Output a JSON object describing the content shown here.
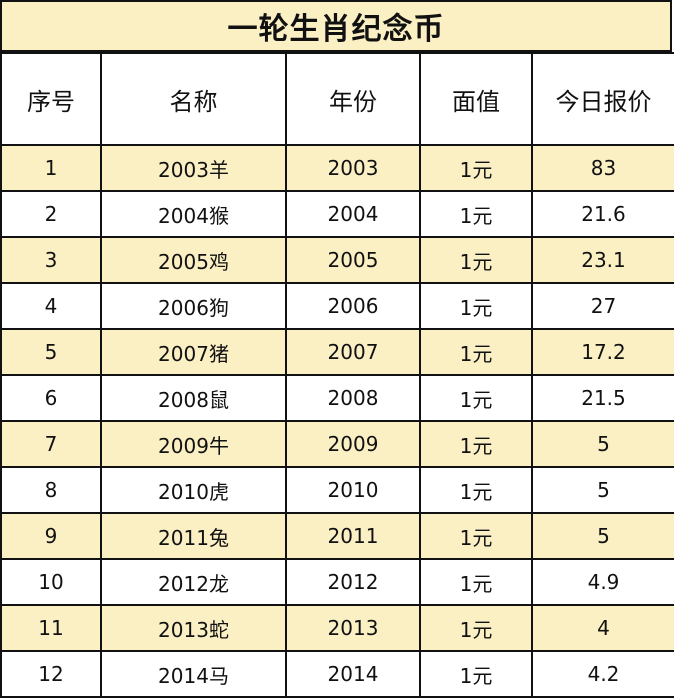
{
  "title": "一轮生肖纪念币",
  "headers": [
    "序号",
    "名称",
    "年份",
    "面值",
    "今日报价"
  ],
  "rows": [
    [
      "1",
      "2003羊",
      "2003",
      "1元",
      "83"
    ],
    [
      "2",
      "2004猴",
      "2004",
      "1元",
      "21.6"
    ],
    [
      "3",
      "2005鸡",
      "2005",
      "1元",
      "23.1"
    ],
    [
      "4",
      "2006狗",
      "2006",
      "1元",
      "27"
    ],
    [
      "5",
      "2007猪",
      "2007",
      "1元",
      "17.2"
    ],
    [
      "6",
      "2008鼠",
      "2008",
      "1元",
      "21.5"
    ],
    [
      "7",
      "2009牛",
      "2009",
      "1元",
      "5"
    ],
    [
      "8",
      "2010虎",
      "2010",
      "1元",
      "5"
    ],
    [
      "9",
      "2011兔",
      "2011",
      "1元",
      "5"
    ],
    [
      "10",
      "2012龙",
      "2012",
      "1元",
      "4.9"
    ],
    [
      "11",
      "2013蛇",
      "2013",
      "1元",
      "4"
    ],
    [
      "12",
      "2014马",
      "2014",
      "1元",
      "4.2"
    ]
  ],
  "colors": {
    "band": "#fbefc4",
    "border": "#111111"
  }
}
